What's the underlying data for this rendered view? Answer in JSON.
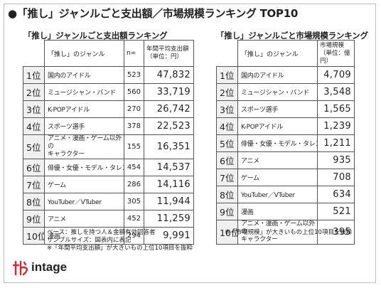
{
  "title": "●「推し」ジャンルごと支出額／市場規模ランキング TOP10",
  "left": {
    "subtitle": "「推し」ジャンルごと支出額ランキング",
    "header_genre": "「推し」のジャンル",
    "header_n": "n=",
    "header_value": "年間平均支出額\n（単位：円）",
    "rows": [
      {
        "rank": "1位",
        "genre": "国内のアイドル",
        "n": "523",
        "value": "47,832"
      },
      {
        "rank": "2位",
        "genre": "ミュージシャン・バンド",
        "n": "560",
        "value": "33,719"
      },
      {
        "rank": "3位",
        "genre": "K-POPアイドル",
        "n": "270",
        "value": "26,742"
      },
      {
        "rank": "4位",
        "genre": "スポーツ選手",
        "n": "378",
        "value": "22,523"
      },
      {
        "rank": "5位",
        "genre": "アニメ・漫画・ゲーム以外の\nキャラクター",
        "n": "155",
        "value": "16,351"
      },
      {
        "rank": "6位",
        "genre": "俳優・女優・モデル・タレント",
        "n": "454",
        "value": "14,537"
      },
      {
        "rank": "7位",
        "genre": "ゲーム",
        "n": "286",
        "value": "14,116"
      },
      {
        "rank": "8位",
        "genre": "YouTuber／VTuber",
        "n": "305",
        "value": "11,944"
      },
      {
        "rank": "9位",
        "genre": "アニメ",
        "n": "452",
        "value": "11,259"
      },
      {
        "rank": "10位",
        "genre": "漫画",
        "n": "294",
        "value": "9,991"
      }
    ],
    "notes": [
      "ベース：推しを持つ人＆金額有効回答者",
      "サンプルサイズ：図表内に表記",
      "※「年間平均支出額」が大きいもの上位10項目を抜粋"
    ]
  },
  "right": {
    "subtitle": "「推し」ジャンルごと市場規模ランキング",
    "header_genre": "「推し」のジャンル",
    "header_value": "市場規模\n（単位：億円）",
    "rows": [
      {
        "rank": "1位",
        "genre": "国内のアイドル",
        "value": "4,709"
      },
      {
        "rank": "2位",
        "genre": "ミュージシャン・バンド",
        "value": "3,548"
      },
      {
        "rank": "3位",
        "genre": "スポーツ選手",
        "value": "1,565"
      },
      {
        "rank": "4位",
        "genre": "K-POPアイドル",
        "value": "1,239"
      },
      {
        "rank": "5位",
        "genre": "俳優・女優・モデル・タレント",
        "value": "1,211"
      },
      {
        "rank": "6位",
        "genre": "アニメ",
        "value": "935"
      },
      {
        "rank": "7位",
        "genre": "ゲーム",
        "value": "708"
      },
      {
        "rank": "8位",
        "genre": "YouTuber／VTuber",
        "value": "634"
      },
      {
        "rank": "9位",
        "genre": "漫画",
        "value": "521"
      },
      {
        "rank": "10位",
        "genre": "アニメ・漫画・ゲーム以外の\nキャラクター",
        "value": "395"
      }
    ],
    "notes": [
      "※「市場規模」が大きいもの上位10項目を抜粋"
    ]
  },
  "logo": {
    "text": "intage",
    "mark_color": "#d7282f"
  }
}
